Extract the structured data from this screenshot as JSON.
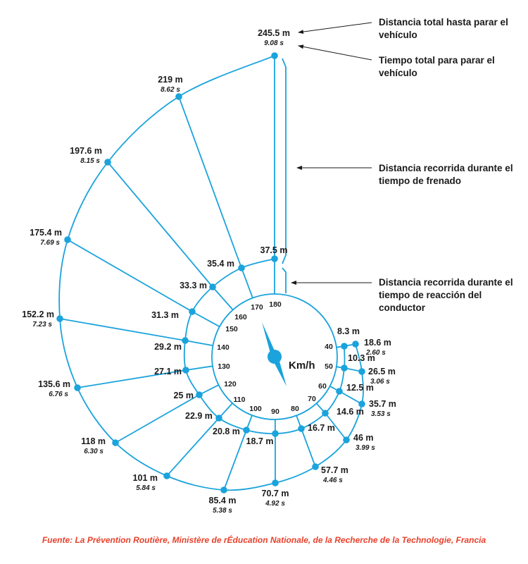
{
  "annotations": {
    "total_distance": "Distancia total hasta parar el vehículo",
    "total_time": "Tiempo total para parar el vehículo",
    "braking_distance": "Distancia recorrida durante el tiempo de frenado",
    "reaction_distance": "Distancia recorrida durante el tiempo de reacción del conductor"
  },
  "dial_unit": "Km/h",
  "source": "Fuente: La Prévention Routière, Ministère de rÉducation Nationale, de la Recherche de la Technologie, Francia",
  "colors": {
    "line": "#1aa3dc",
    "dot": "#1aa3dc",
    "needle": "#1aa3dc",
    "text": "#1a1a1a",
    "source": "#e8412c"
  },
  "chart_data": {
    "type": "spiral",
    "speed_unit": "km/h",
    "speeds": [
      40,
      50,
      60,
      70,
      80,
      90,
      100,
      110,
      120,
      130,
      140,
      150,
      160,
      170,
      180
    ],
    "reaction_distance": [
      "8.3 m",
      "10.3 m",
      "12.5 m",
      "14.6 m",
      "16.7 m",
      "18.7 m",
      "20.8 m",
      "22.9 m",
      "25 m",
      "27.1 m",
      "29.2 m",
      "31.3 m",
      "33.3 m",
      "35.4 m",
      "37.5 m"
    ],
    "total_distance": [
      "18.6 m",
      "26.5 m",
      "35.7 m",
      "46 m",
      "57.7 m",
      "70.7 m",
      "85.4 m",
      "101 m",
      "118 m",
      "135.6 m",
      "152.2 m",
      "175.4 m",
      "197.6 m",
      "219 m",
      "245.5 m"
    ],
    "total_time": [
      "2.60 s",
      "3.06 s",
      "3.53 s",
      "3.99 s",
      "4.46 s",
      "4.92 s",
      "5.38 s",
      "5.84 s",
      "6.30 s",
      "6.76 s",
      "7.23 s",
      "7.69 s",
      "8.15 s",
      "8.62 s",
      "9.08 s"
    ]
  }
}
